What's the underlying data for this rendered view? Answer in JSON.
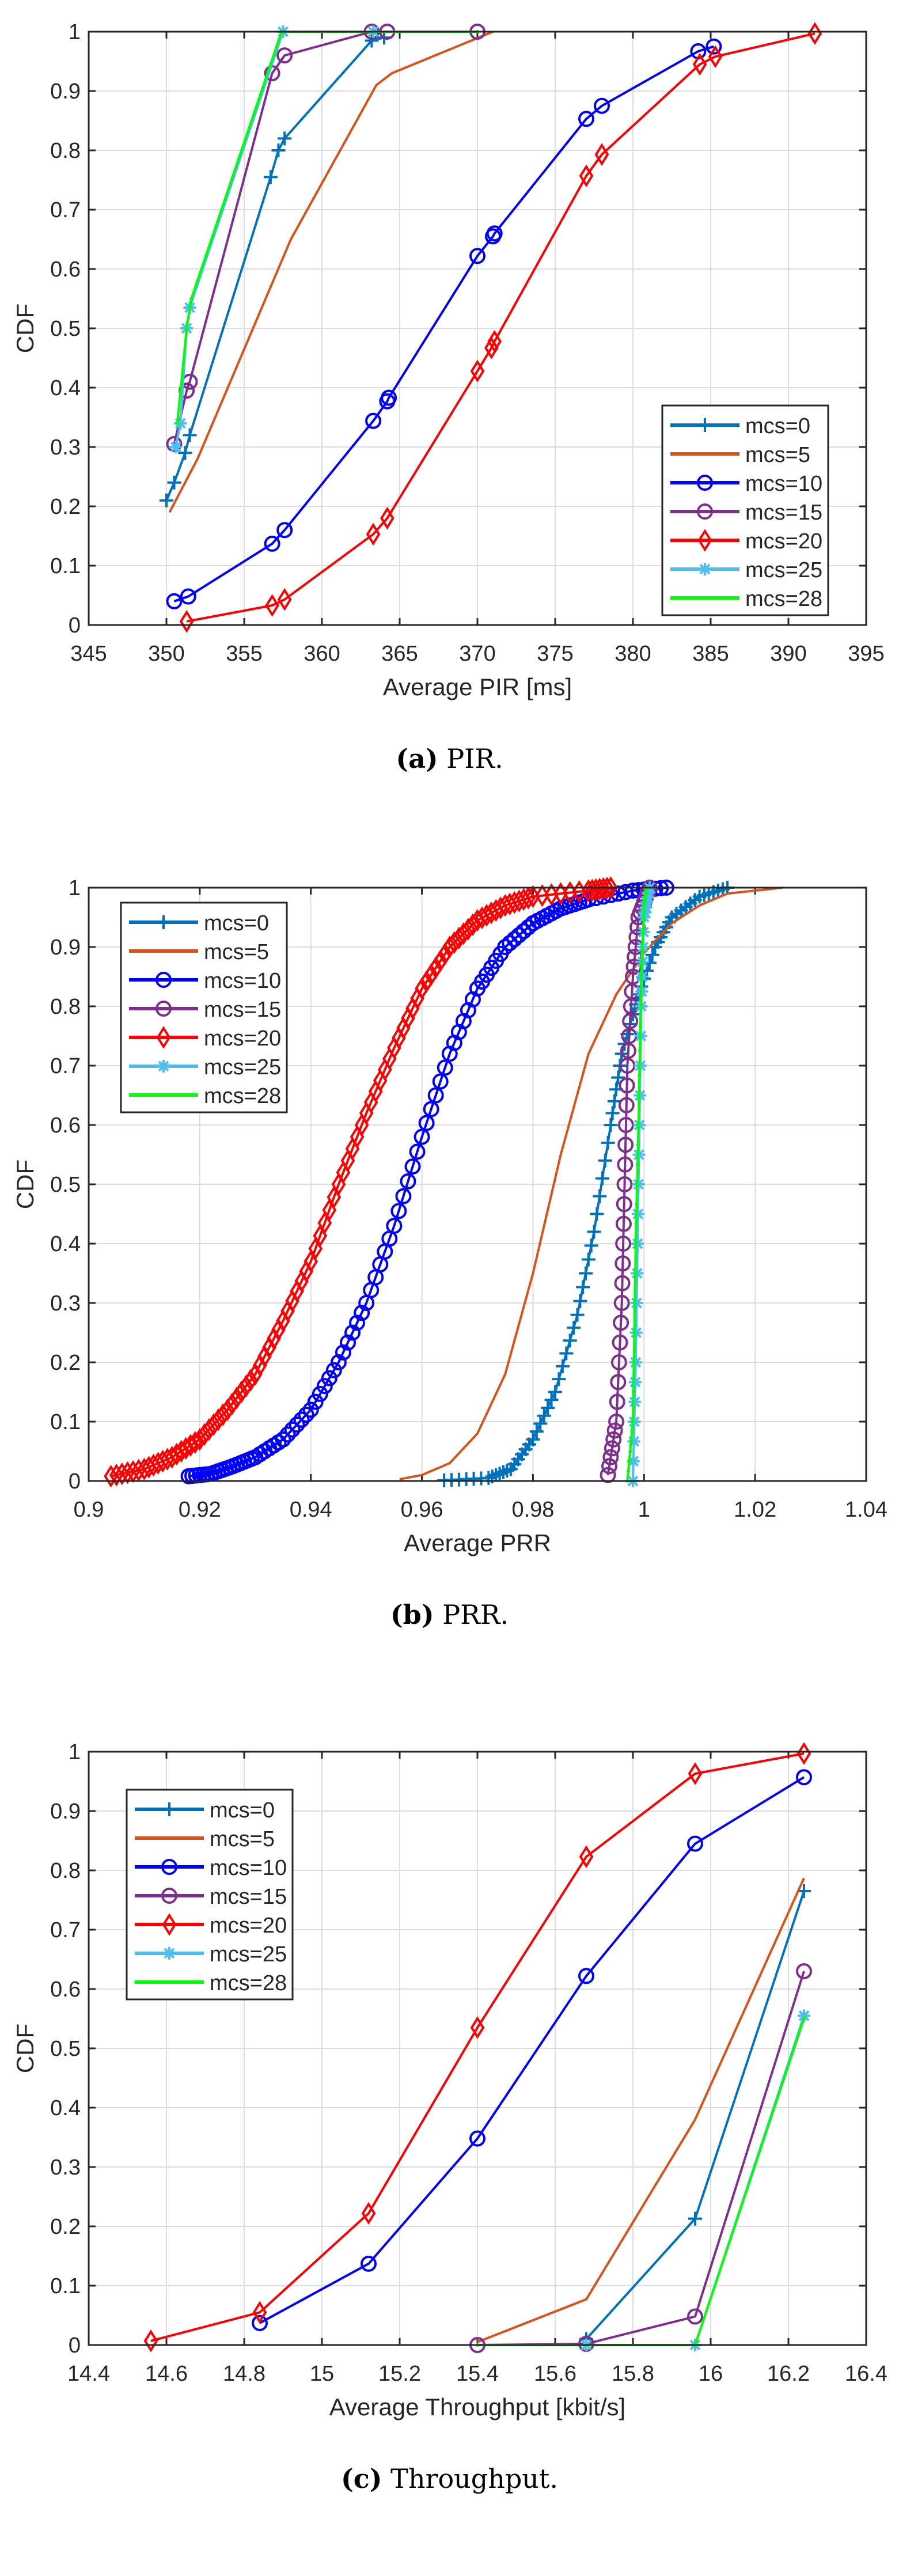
{
  "styles": {
    "mcs=0": {
      "color": "#0072BD",
      "marker": "plus"
    },
    "mcs=5": {
      "color": "#D95319",
      "marker": "none"
    },
    "mcs=10": {
      "color": "#0000FF",
      "marker": "circle"
    },
    "mcs=15": {
      "color": "#7E2F8E",
      "marker": "circle"
    },
    "mcs=20": {
      "color": "#FF0000",
      "marker": "diamond"
    },
    "mcs=25": {
      "color": "#4DBEEE",
      "marker": "asterisk"
    },
    "mcs=28": {
      "color": "#00FF00",
      "marker": "dot"
    }
  },
  "chart_data": [
    {
      "type": "line",
      "caption_label": "(a)",
      "caption_text": "PIR.",
      "xlabel": "Average PIR [ms]",
      "ylabel": "CDF",
      "xlim": [
        345,
        395
      ],
      "ylim": [
        0,
        1
      ],
      "xticks": [
        345,
        350,
        355,
        360,
        365,
        370,
        375,
        380,
        385,
        390,
        395
      ],
      "yticks": [
        0,
        0.1,
        0.2,
        0.3,
        0.4,
        0.5,
        0.6,
        0.7,
        0.8,
        0.9,
        1
      ],
      "xtick_labels": [
        "345",
        "350",
        "355",
        "360",
        "365",
        "370",
        "375",
        "380",
        "385",
        "390",
        "395"
      ],
      "ytick_labels": [
        "0",
        "0.1",
        "0.2",
        "0.3",
        "0.4",
        "0.5",
        "0.6",
        "0.7",
        "0.8",
        "0.9",
        "1"
      ],
      "grid": true,
      "legend": "bottom-right",
      "dense_markers": false,
      "series": [
        {
          "name": "mcs=0",
          "x": [
            350,
            350.5,
            351.2,
            351.5,
            356.7,
            357.2,
            357.6,
            363.2,
            364
          ],
          "y": [
            0.21,
            0.24,
            0.29,
            0.32,
            0.755,
            0.8,
            0.82,
            0.985,
            0.99
          ]
        },
        {
          "name": "mcs=5",
          "x": [
            350.2,
            352,
            358,
            363.5,
            364.5,
            371
          ],
          "y": [
            0.19,
            0.28,
            0.65,
            0.91,
            0.93,
            1.0
          ]
        },
        {
          "name": "mcs=10",
          "x": [
            350.5,
            351.4,
            356.8,
            357.6,
            363.3,
            364.2,
            364.3,
            370,
            371,
            371.1,
            377,
            378,
            384.2,
            385.2
          ],
          "y": [
            0.04,
            0.048,
            0.137,
            0.16,
            0.344,
            0.377,
            0.383,
            0.622,
            0.655,
            0.66,
            0.853,
            0.875,
            0.967,
            0.975
          ]
        },
        {
          "name": "mcs=15",
          "x": [
            350.5,
            351.3,
            351.5,
            356.8,
            357.6,
            363.2,
            364.2,
            370
          ],
          "y": [
            0.305,
            0.395,
            0.41,
            0.93,
            0.96,
            1.0,
            1.0,
            1.0
          ]
        },
        {
          "name": "mcs=20",
          "x": [
            351.3,
            356.8,
            357.6,
            363.3,
            364.2,
            370,
            370.9,
            371.1,
            377,
            378,
            384.3,
            385.3,
            391.7
          ],
          "y": [
            0.006,
            0.033,
            0.043,
            0.153,
            0.18,
            0.428,
            0.467,
            0.478,
            0.757,
            0.793,
            0.945,
            0.958,
            0.997
          ]
        },
        {
          "name": "mcs=25",
          "x": [
            350.6,
            350.9,
            351.3,
            351.5,
            357.5,
            363.3
          ],
          "y": [
            0.3,
            0.34,
            0.5,
            0.535,
            1.0,
            1.0
          ]
        },
        {
          "name": "mcs=28",
          "x": [
            350.7,
            351.3,
            351.6,
            357.4,
            370
          ],
          "y": [
            0.34,
            0.5,
            0.55,
            1.0,
            1.0
          ]
        }
      ]
    },
    {
      "type": "line",
      "caption_label": "(b)",
      "caption_text": "PRR.",
      "xlabel": "Average PRR",
      "ylabel": "CDF",
      "xlim": [
        0.9,
        1.04
      ],
      "ylim": [
        0,
        1
      ],
      "xticks": [
        0.9,
        0.92,
        0.94,
        0.96,
        0.98,
        1,
        1.02,
        1.04
      ],
      "yticks": [
        0,
        0.1,
        0.2,
        0.3,
        0.4,
        0.5,
        0.6,
        0.7,
        0.8,
        0.9,
        1
      ],
      "xtick_labels": [
        "0.9",
        "0.92",
        "0.94",
        "0.96",
        "0.98",
        "1",
        "1.02",
        "1.04"
      ],
      "ytick_labels": [
        "0",
        "0.1",
        "0.2",
        "0.3",
        "0.4",
        "0.5",
        "0.6",
        "0.7",
        "0.8",
        "0.9",
        "1"
      ],
      "grid": true,
      "legend": "top-left",
      "dense_markers": true,
      "series": [
        {
          "name": "mcs=0",
          "x": [
            0.964,
            0.972,
            0.976,
            0.98,
            0.984,
            0.988,
            0.991,
            0.994,
            0.996,
            0.999,
            1.002,
            1.005,
            1.01,
            1.015
          ],
          "y": [
            0.001,
            0.005,
            0.02,
            0.07,
            0.15,
            0.28,
            0.42,
            0.6,
            0.72,
            0.82,
            0.9,
            0.95,
            0.985,
            1.0
          ]
        },
        {
          "name": "mcs=5",
          "x": [
            0.956,
            0.96,
            0.965,
            0.97,
            0.975,
            0.98,
            0.985,
            0.99,
            0.995,
            1.0,
            1.005,
            1.01,
            1.015,
            1.025
          ],
          "y": [
            0.003,
            0.01,
            0.03,
            0.08,
            0.18,
            0.35,
            0.55,
            0.72,
            0.82,
            0.89,
            0.94,
            0.97,
            0.99,
            1.0
          ]
        },
        {
          "name": "mcs=10",
          "x": [
            0.918,
            0.922,
            0.926,
            0.93,
            0.935,
            0.94,
            0.945,
            0.95,
            0.955,
            0.96,
            0.965,
            0.97,
            0.975,
            0.98,
            0.985,
            0.99,
            0.998,
            1.004
          ],
          "y": [
            0.008,
            0.012,
            0.025,
            0.04,
            0.07,
            0.12,
            0.2,
            0.3,
            0.43,
            0.58,
            0.72,
            0.83,
            0.9,
            0.94,
            0.965,
            0.98,
            0.995,
            1.0
          ]
        },
        {
          "name": "mcs=15",
          "x": [
            0.9935,
            0.995,
            0.996,
            0.9965,
            0.997,
            0.998,
            0.999,
            1.001
          ],
          "y": [
            0.01,
            0.1,
            0.3,
            0.5,
            0.7,
            0.85,
            0.95,
            1.0
          ]
        },
        {
          "name": "mcs=20",
          "x": [
            0.904,
            0.91,
            0.915,
            0.92,
            0.925,
            0.93,
            0.935,
            0.94,
            0.945,
            0.95,
            0.955,
            0.96,
            0.965,
            0.97,
            0.975,
            0.98,
            0.99,
            0.994
          ],
          "y": [
            0.008,
            0.02,
            0.04,
            0.07,
            0.12,
            0.18,
            0.27,
            0.37,
            0.5,
            0.62,
            0.73,
            0.83,
            0.9,
            0.945,
            0.97,
            0.985,
            0.995,
            1.0
          ]
        },
        {
          "name": "mcs=25",
          "x": [
            0.998,
            0.9985,
            0.999,
            0.9995,
            1.0,
            1.001
          ],
          "y": [
            0.0,
            0.2,
            0.5,
            0.8,
            0.95,
            1.0
          ]
        },
        {
          "name": "mcs=28",
          "x": [
            0.997,
            0.998,
            0.9985,
            0.999,
            0.9995,
            1.0,
            1.0005
          ],
          "y": [
            0.0,
            0.1,
            0.4,
            0.6,
            0.85,
            0.97,
            1.0
          ]
        }
      ]
    },
    {
      "type": "line",
      "caption_label": "(c)",
      "caption_text": "Throughput.",
      "xlabel": "Average Throughput [kbit/s]",
      "ylabel": "CDF",
      "xlim": [
        14.4,
        16.4
      ],
      "ylim": [
        0,
        1
      ],
      "xticks": [
        14.4,
        14.6,
        14.8,
        15,
        15.2,
        15.4,
        15.6,
        15.8,
        16,
        16.2,
        16.4
      ],
      "yticks": [
        0,
        0.1,
        0.2,
        0.3,
        0.4,
        0.5,
        0.6,
        0.7,
        0.8,
        0.9,
        1
      ],
      "xtick_labels": [
        "14.4",
        "14.6",
        "14.8",
        "15",
        "15.2",
        "15.4",
        "15.6",
        "15.8",
        "16",
        "16.2",
        "16.4"
      ],
      "ytick_labels": [
        "0",
        "0.1",
        "0.2",
        "0.3",
        "0.4",
        "0.5",
        "0.6",
        "0.7",
        "0.8",
        "0.9",
        "1"
      ],
      "grid": true,
      "legend": "top-left",
      "dense_markers": false,
      "series": [
        {
          "name": "mcs=0",
          "x": [
            15.68,
            15.96,
            16.24
          ],
          "y": [
            0.01,
            0.213,
            0.765
          ]
        },
        {
          "name": "mcs=5",
          "x": [
            15.4,
            15.68,
            15.96,
            16.24
          ],
          "y": [
            0.005,
            0.077,
            0.38,
            0.787
          ]
        },
        {
          "name": "mcs=10",
          "x": [
            14.84,
            15.12,
            15.4,
            15.68,
            15.96,
            16.24
          ],
          "y": [
            0.037,
            0.137,
            0.348,
            0.622,
            0.845,
            0.957
          ]
        },
        {
          "name": "mcs=15",
          "x": [
            15.4,
            15.68,
            15.96,
            16.24
          ],
          "y": [
            0.0,
            0.002,
            0.048,
            0.63
          ]
        },
        {
          "name": "mcs=20",
          "x": [
            14.56,
            14.84,
            15.12,
            15.4,
            15.68,
            15.96,
            16.24
          ],
          "y": [
            0.007,
            0.055,
            0.222,
            0.535,
            0.823,
            0.963,
            0.997
          ]
        },
        {
          "name": "mcs=25",
          "x": [
            15.68,
            15.96,
            16.24
          ],
          "y": [
            0.0,
            0.0,
            0.555
          ]
        },
        {
          "name": "mcs=28",
          "x": [
            15.4,
            15.96,
            16.24
          ],
          "y": [
            0.0,
            0.0,
            0.55
          ]
        }
      ]
    }
  ]
}
